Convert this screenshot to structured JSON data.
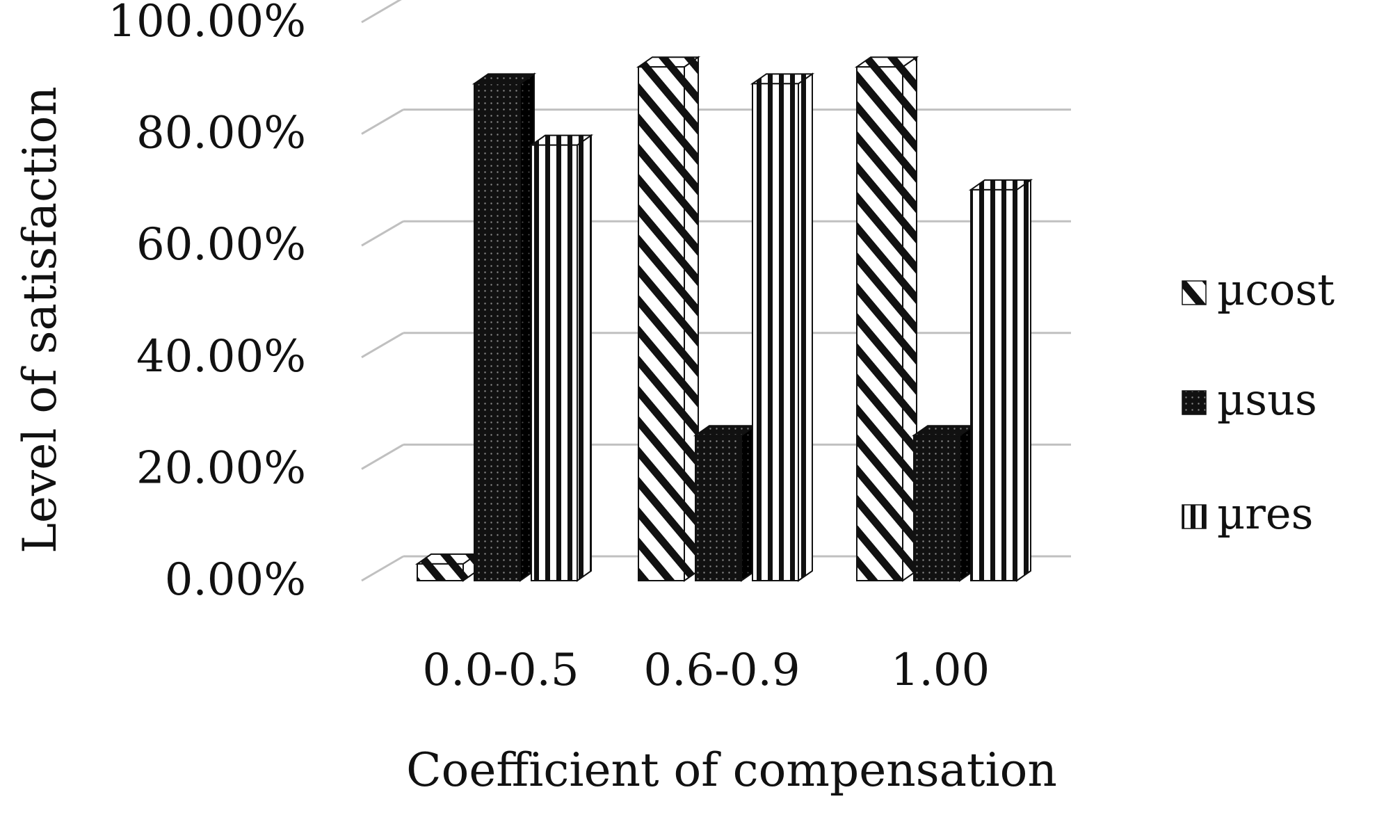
{
  "chart_data": {
    "type": "bar",
    "title": "",
    "xlabel": "Coefficient of compensation",
    "ylabel": "Level of satisfaction",
    "categories": [
      "0.0-0.5",
      "0.6-0.9",
      "1.00"
    ],
    "series": [
      {
        "name": "µcost",
        "pattern": "diagonal-stripes",
        "values": [
          3,
          92,
          92
        ]
      },
      {
        "name": "µsus",
        "pattern": "dots",
        "values": [
          89,
          26,
          26
        ]
      },
      {
        "name": "µres",
        "pattern": "vertical-stripes",
        "values": [
          78,
          89,
          70
        ]
      }
    ],
    "yticks": [
      "0.00%",
      "20.00%",
      "40.00%",
      "60.00%",
      "80.00%",
      "100.00%"
    ],
    "ylim": [
      0,
      100
    ],
    "grid": true,
    "legend": "right",
    "colors": {
      "bar_dark": "#111111",
      "bar_light": "#ffffff",
      "grid": "#c0c0c0",
      "text": "#111111"
    }
  }
}
